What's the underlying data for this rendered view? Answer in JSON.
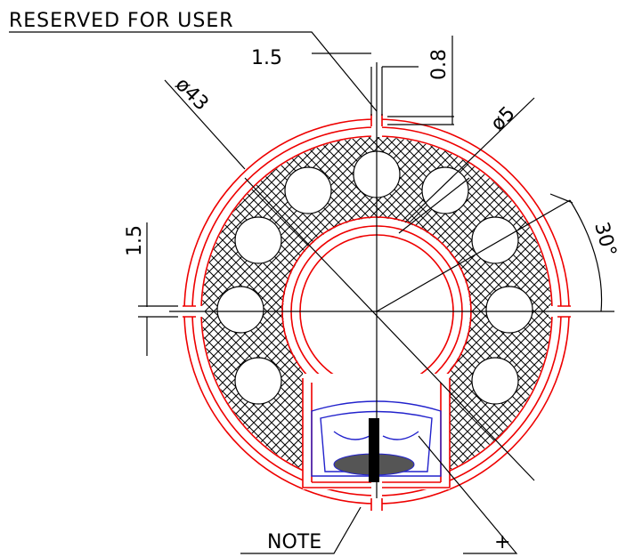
{
  "annotations": {
    "reserved": "RESERVED FOR USER",
    "slot_width": "1.5",
    "gap": "0.8",
    "outer_diameter": "ø43",
    "hole_diameter": "ø5",
    "side_gap": "1.5",
    "angle": "30°",
    "note": "NOTE",
    "plus": "+"
  }
}
